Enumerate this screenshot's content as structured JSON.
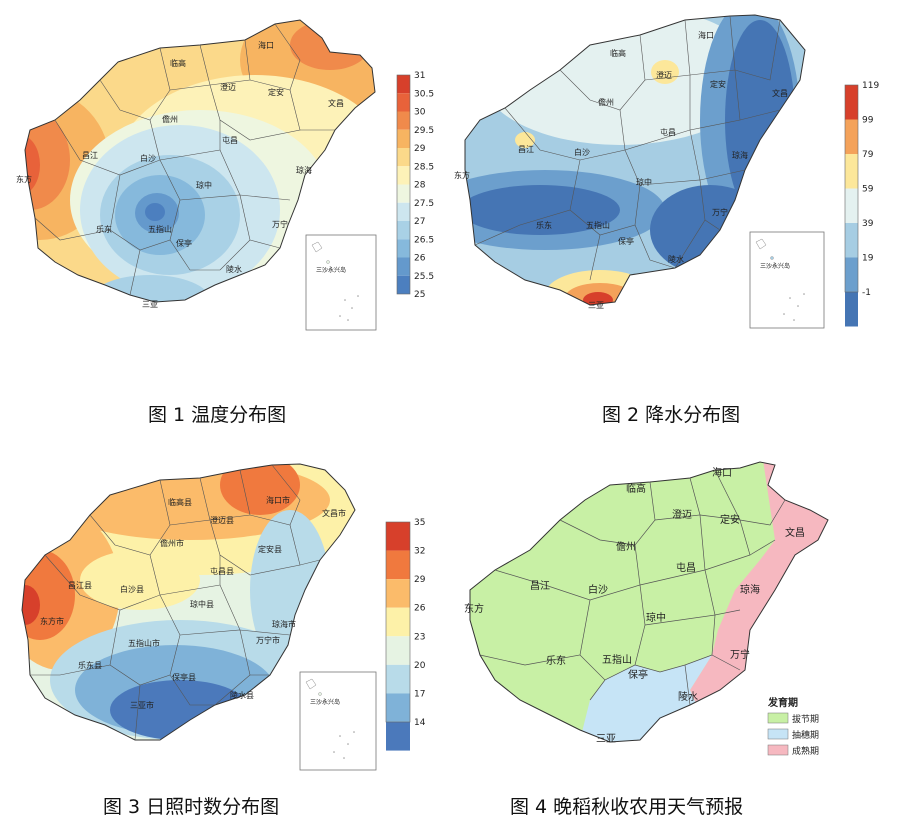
{
  "maps": [
    {
      "id": "temperature",
      "caption": "图 1 温度分布图",
      "colorbar": {
        "labels": [
          "31",
          "30.5",
          "30",
          "29.5",
          "29",
          "28.5",
          "28",
          "27.5",
          "27",
          "26.5",
          "26",
          "25.5",
          "25"
        ],
        "colors": [
          "#d7402b",
          "#e8623a",
          "#f08a4b",
          "#f7b461",
          "#fbd98a",
          "#fdf2b8",
          "#eef6e0",
          "#cde6ef",
          "#a9d1e6",
          "#86b9dc",
          "#6499cc",
          "#4c7fbf"
        ]
      },
      "cities": [
        "海口",
        "临高",
        "澄迈",
        "定安",
        "文昌",
        "儋州",
        "屯昌",
        "琼海",
        "昌江",
        "白沙",
        "琼中",
        "东方",
        "乐东",
        "五指山",
        "保亭",
        "万宁",
        "陵水",
        "三亚"
      ],
      "inset_label": "三沙永兴岛"
    },
    {
      "id": "precipitation",
      "caption": "图 2 降水分布图",
      "colorbar": {
        "labels": [
          "119",
          "99",
          "79",
          "59",
          "39",
          "19",
          "-1"
        ],
        "colors": [
          "#d7402b",
          "#f4a25a",
          "#fce79a",
          "#e4f1f0",
          "#a6cde3",
          "#6c9fcd",
          "#4575b4"
        ]
      },
      "cities": [
        "海口",
        "临高",
        "澄迈",
        "定安",
        "文昌",
        "儋州",
        "屯昌",
        "琼海",
        "昌江",
        "白沙",
        "琼中",
        "东方",
        "乐东",
        "五指山",
        "保亭",
        "万宁",
        "陵水",
        "三亚"
      ],
      "inset_label": "三沙永兴岛"
    },
    {
      "id": "sunshine",
      "caption": "图 3  日照时数分布图",
      "colorbar": {
        "labels": [
          "35",
          "32",
          "29",
          "26",
          "23",
          "20",
          "17",
          "14"
        ],
        "colors": [
          "#d7402b",
          "#f0793e",
          "#fbbb6a",
          "#fdf1a8",
          "#e6f3e3",
          "#b8dbe9",
          "#7fb2d8",
          "#4b79bb"
        ]
      },
      "cities": [
        "海口市",
        "临高县",
        "澄迈县",
        "定安县",
        "文昌市",
        "儋州市",
        "屯昌县",
        "琼海市",
        "昌江县",
        "白沙县",
        "琼中县",
        "东方市",
        "乐东县",
        "五指山市",
        "保亭县",
        "万宁市",
        "陵水县",
        "三亚市"
      ],
      "inset_label": "三沙永兴岛"
    },
    {
      "id": "forecast",
      "caption": "图 4 晚稻秋收农用天气预报",
      "cities": [
        "海口",
        "临高",
        "澄迈",
        "定安",
        "文昌",
        "儋州",
        "屯昌",
        "琼海",
        "昌江",
        "白沙",
        "琼中",
        "东方",
        "乐东",
        "五指山",
        "保亭",
        "万宁",
        "陵水",
        "三亚"
      ],
      "legend": {
        "title": "发育期",
        "items": [
          {
            "label": "拔节期",
            "color": "#c8f0a5"
          },
          {
            "label": "抽穗期",
            "color": "#c6e4f6"
          },
          {
            "label": "成熟期",
            "color": "#f6b8c0"
          }
        ]
      }
    }
  ]
}
